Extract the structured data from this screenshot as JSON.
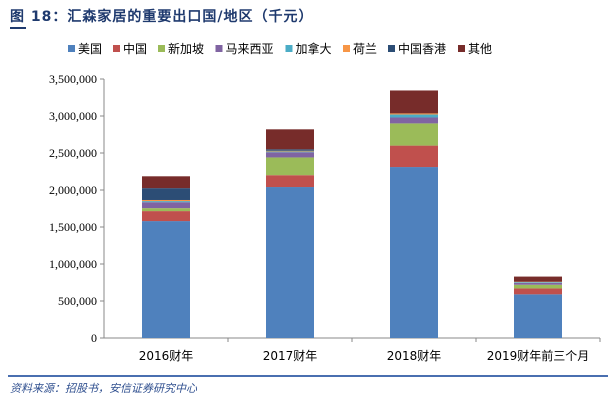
{
  "title": "图 18：汇森家居的重要出口国/地区（千元）",
  "source": "资料来源：招股书，安信证券研究中心",
  "chart_data": {
    "type": "bar",
    "stacked": true,
    "categories": [
      "2016财年",
      "2017财年",
      "2018财年",
      "2019财年前三个月"
    ],
    "ylim": [
      0,
      3500000
    ],
    "yticks": [
      0,
      500000,
      1000000,
      1500000,
      2000000,
      2500000,
      3000000,
      3500000
    ],
    "ytick_labels": [
      "0",
      "500,000",
      "1,000,000",
      "1,500,000",
      "2,000,000",
      "2,500,000",
      "3,000,000",
      "3,500,000"
    ],
    "legend_position": "top",
    "grid": false,
    "series": [
      {
        "name": "美国",
        "color": "#4F81BD",
        "values": [
          1580000,
          2040000,
          2310000,
          590000
        ]
      },
      {
        "name": "中国",
        "color": "#C0504D",
        "values": [
          135000,
          160000,
          290000,
          80000
        ]
      },
      {
        "name": "新加坡",
        "color": "#9BBB59",
        "values": [
          40000,
          240000,
          300000,
          50000
        ]
      },
      {
        "name": "马来西亚",
        "color": "#8064A2",
        "values": [
          80000,
          70000,
          80000,
          25000
        ]
      },
      {
        "name": "加拿大",
        "color": "#4BACC6",
        "values": [
          15000,
          10000,
          40000,
          10000
        ]
      },
      {
        "name": "荷兰",
        "color": "#F79646",
        "values": [
          15000,
          10000,
          15000,
          5000
        ]
      },
      {
        "name": "中国香港",
        "color": "#2C4D75",
        "values": [
          160000,
          20000,
          0,
          0
        ]
      },
      {
        "name": "其他",
        "color": "#772C2A",
        "values": [
          160000,
          270000,
          310000,
          70000
        ]
      }
    ]
  }
}
